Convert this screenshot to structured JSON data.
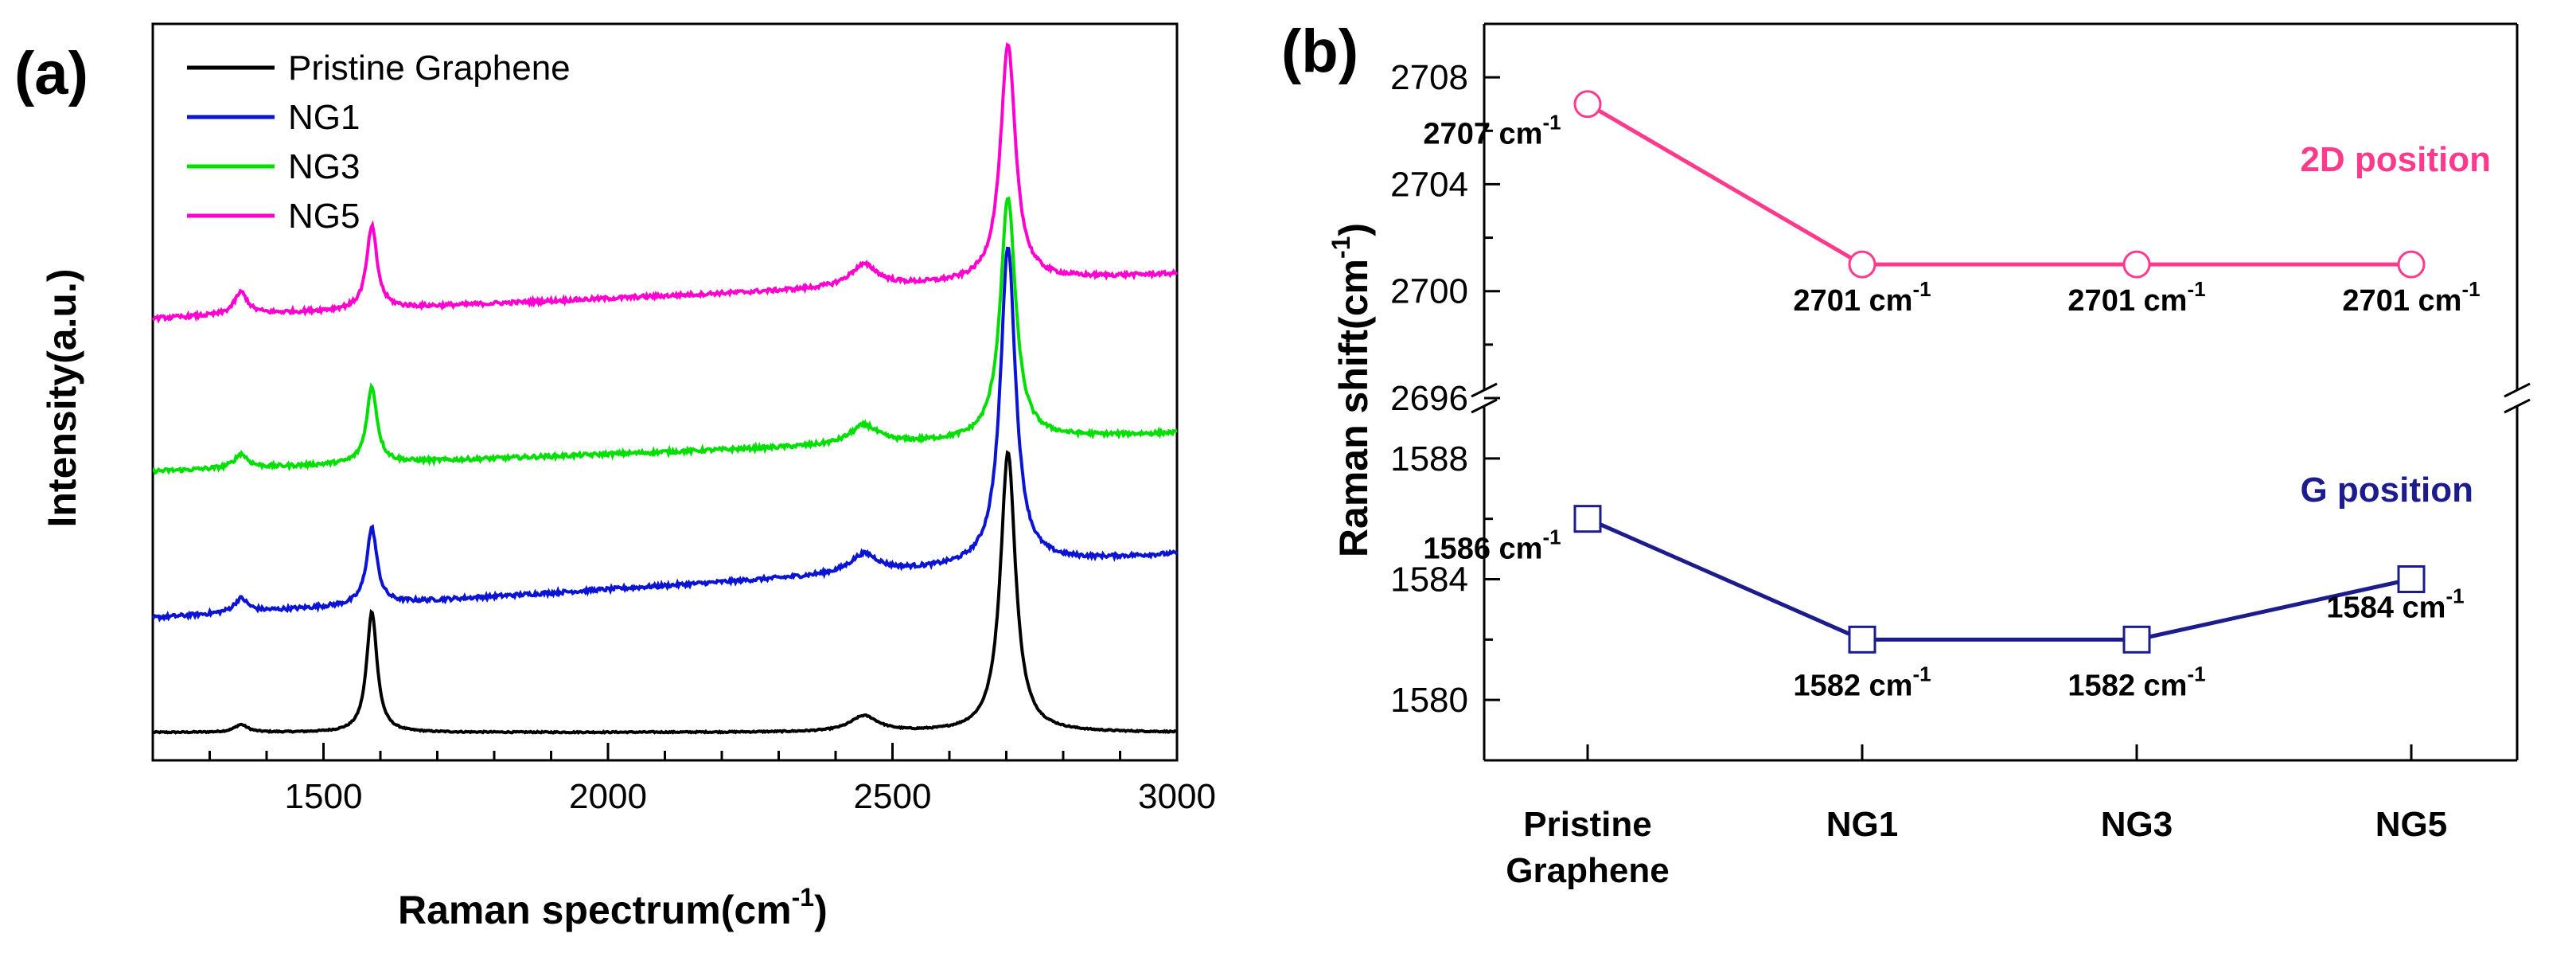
{
  "colors": {
    "pristine": "#000000",
    "ng1": "#0a14d2",
    "ng3": "#00e000",
    "ng5": "#ff00d0",
    "pos2d": "#ff3a8c",
    "posg": "#1c1c8c"
  },
  "chart_data": [
    {
      "type": "line",
      "panel_label": "(a)",
      "xlabel": "Raman spectrum",
      "xlabel_unit_base": "cm",
      "xlabel_unit_exp": "-1",
      "ylabel": "Intensity(a.u.)",
      "xlim": [
        1200,
        3000
      ],
      "xticks": [
        "1500",
        "2000",
        "2500",
        "3000"
      ],
      "xtick_values": [
        1500,
        2000,
        2500,
        3000
      ],
      "peaks_cm1": {
        "D": 1355,
        "G": 1585,
        "D_prime_like": 2450,
        "2D": 2703
      },
      "series": [
        {
          "name": "Pristine Graphene",
          "color_key": "pristine",
          "baseline_start": 0.0,
          "baseline_end": 0.0,
          "D": 0.012,
          "G": 0.19,
          "band2450": 0.025,
          "twoD": 0.44,
          "noise": 0.002
        },
        {
          "name": "NG1",
          "color_key": "ng1",
          "baseline_start": 0.18,
          "baseline_end": 0.28,
          "D": 0.022,
          "G": 0.12,
          "band2450": 0.03,
          "twoD": 0.5,
          "noise": 0.006
        },
        {
          "name": "NG3",
          "color_key": "ng3",
          "baseline_start": 0.41,
          "baseline_end": 0.47,
          "D": 0.022,
          "G": 0.12,
          "band2450": 0.03,
          "twoD": 0.38,
          "noise": 0.006
        },
        {
          "name": "NG5",
          "color_key": "ng5",
          "baseline_start": 0.65,
          "baseline_end": 0.72,
          "D": 0.035,
          "G": 0.13,
          "band2450": 0.035,
          "twoD": 0.37,
          "noise": 0.006
        }
      ]
    },
    {
      "type": "line",
      "panel_label": "(b)",
      "ylabel": "Raman shift",
      "ylabel_unit_base": "cm",
      "ylabel_unit_exp": "-1",
      "categories": [
        "Pristine Graphene",
        "NG1",
        "NG3",
        "NG5"
      ],
      "category_lines": [
        [
          "Pristine",
          "Graphene"
        ],
        [
          "NG1"
        ],
        [
          "NG3"
        ],
        [
          "NG5"
        ]
      ],
      "upper_ylim": [
        2696,
        2710
      ],
      "upper_yticks": [
        "2696",
        "2700",
        "2704",
        "2708"
      ],
      "upper_ytick_values": [
        2696,
        2700,
        2704,
        2708
      ],
      "lower_ylim": [
        1578,
        1590
      ],
      "lower_yticks": [
        "1580",
        "1584",
        "1588"
      ],
      "lower_ytick_values": [
        1580,
        1584,
        1588
      ],
      "unit_text": "cm",
      "unit_exp": "-1",
      "series": [
        {
          "name": "2D position",
          "color_key": "pos2d",
          "marker": "circle",
          "axis": "upper",
          "values": [
            2707,
            2701,
            2701,
            2701
          ],
          "labels": [
            "2707",
            "2701",
            "2701",
            "2701"
          ]
        },
        {
          "name": "G position",
          "color_key": "posg",
          "marker": "square",
          "axis": "lower",
          "values": [
            1586,
            1582,
            1582,
            1584
          ],
          "labels": [
            "1586",
            "1582",
            "1582",
            "1584"
          ]
        }
      ]
    }
  ]
}
